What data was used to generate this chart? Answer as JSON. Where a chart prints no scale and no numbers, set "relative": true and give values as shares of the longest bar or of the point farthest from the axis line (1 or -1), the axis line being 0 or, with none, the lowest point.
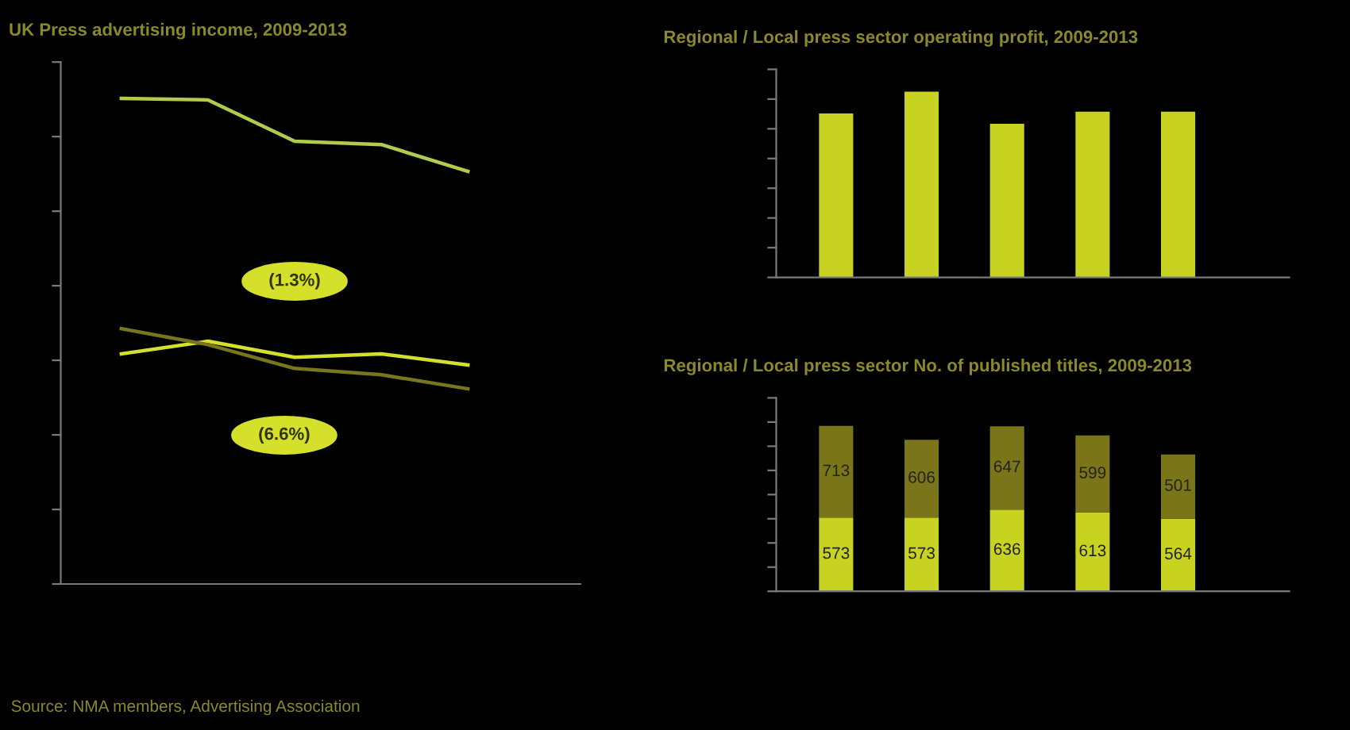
{
  "chart_data": [
    {
      "type": "line",
      "title": "UK Press advertising income, 2009-2013",
      "relative": true,
      "categories": [
        null,
        null,
        null,
        null,
        null
      ],
      "grid": false,
      "legend": false,
      "series": [
        {
          "color": "#b0cc4a",
          "values": [
            1,
            0.997,
            0.912,
            0.905,
            0.85
          ]
        },
        {
          "color": "#d4e02a",
          "values": [
            0.474,
            0.5,
            0.467,
            0.474,
            0.451
          ]
        },
        {
          "color": "#7a761e",
          "values": [
            0.526,
            0.493,
            0.444,
            0.431,
            0.402
          ]
        }
      ],
      "annotations": [
        "(1.3%)",
        "(6.6%)",
        "Source: NMA members, Advertising Association"
      ]
    },
    {
      "type": "bar",
      "title": "Regional / Local press sector operating profit, 2009-2013",
      "relative": true,
      "categories": [
        null,
        null,
        null,
        null,
        null
      ],
      "grid": false,
      "legend": false,
      "series": [
        {
          "color": "#c8d321",
          "values": [
            0.883,
            1,
            0.827,
            0.892,
            0.892
          ]
        }
      ]
    },
    {
      "type": "bar",
      "title": "Regional / Local press sector No. of published titles, 2009-2013",
      "stacked": true,
      "data_labels": true,
      "categories": [
        null,
        null,
        null,
        null,
        null
      ],
      "grid": false,
      "legend": false,
      "series": [
        {
          "color": "#c8d321",
          "values": [
            573,
            573,
            636,
            613,
            564
          ]
        },
        {
          "color": "#7a7518",
          "values": [
            713,
            606,
            647,
            599,
            501
          ]
        }
      ]
    }
  ]
}
